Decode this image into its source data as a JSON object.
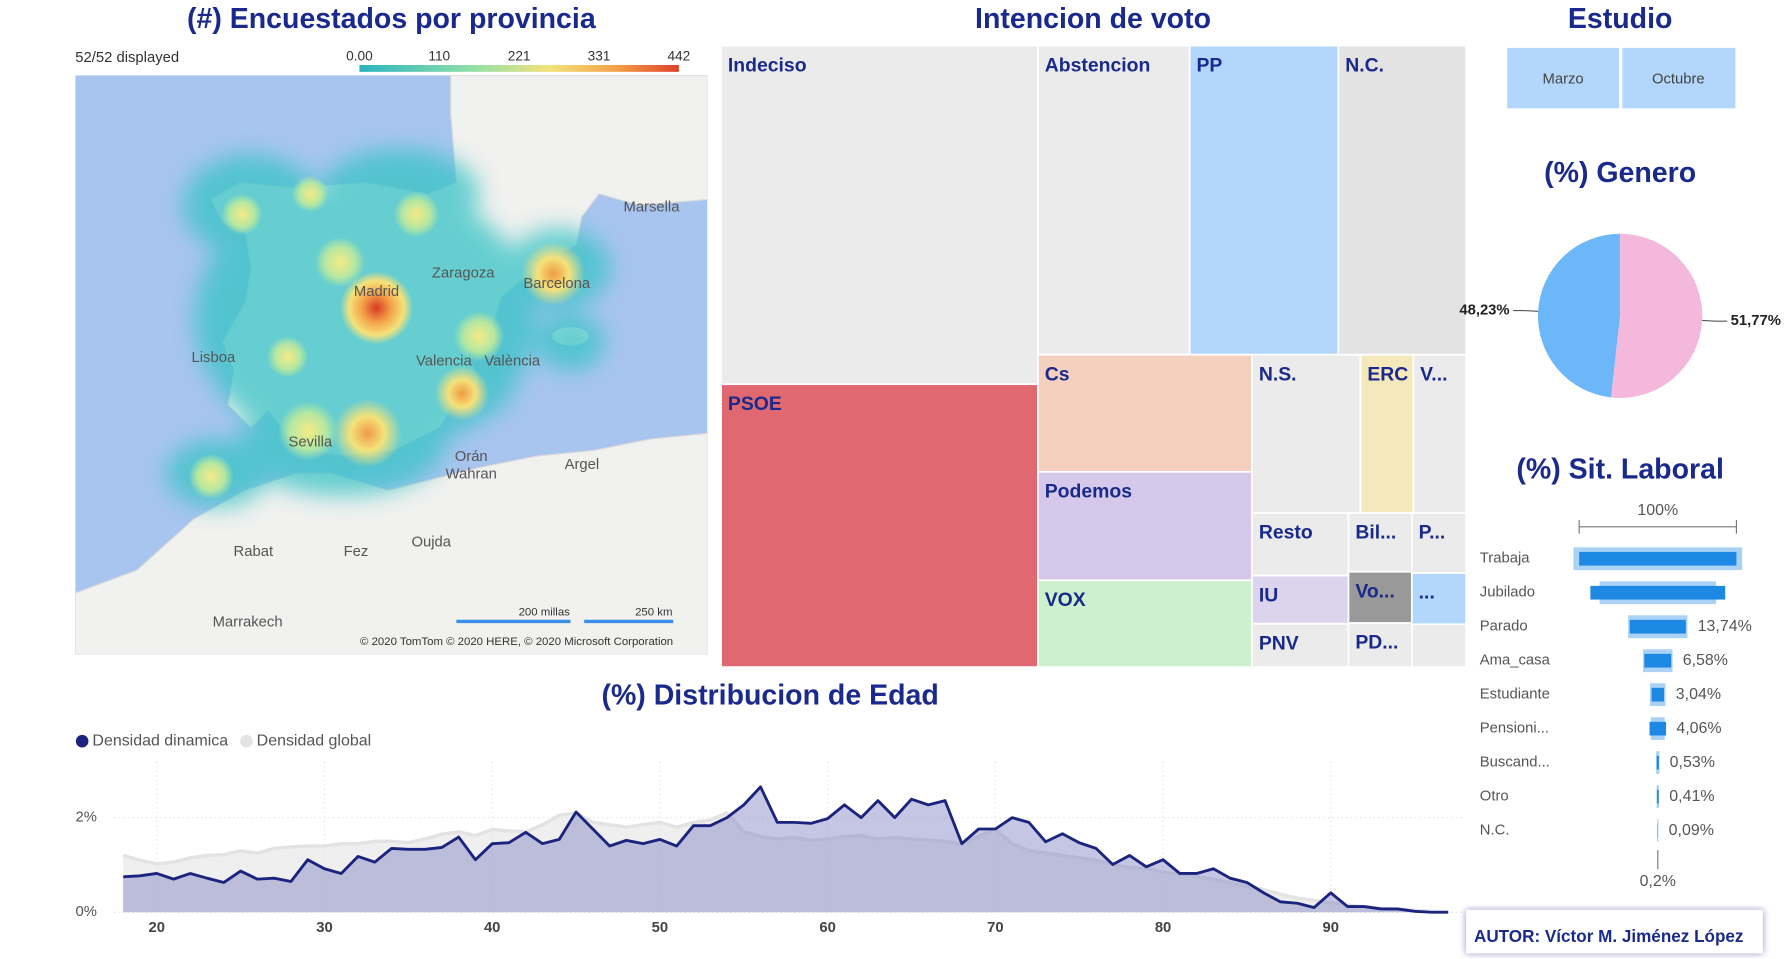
{
  "map": {
    "title": "(#) Encuestados por provincia",
    "status": "52/52 displayed",
    "legend_ticks": [
      "0.00",
      "110",
      "221",
      "331",
      "442"
    ],
    "places": [
      "Marsella",
      "Zaragoza",
      "Barcelona",
      "Madrid",
      "Lisboa",
      "Valencia",
      "València",
      "Sevilla",
      "Orán",
      "Wahran",
      "Argel",
      "Rabat",
      "Fez",
      "Oujda",
      "Marrakech"
    ],
    "scale": [
      "200 millas",
      "250 km"
    ],
    "attribution": "© 2020 TomTom © 2020 HERE, © 2020 Microsoft Corporation"
  },
  "slicer": {
    "title": "Estudio",
    "options": [
      "Marzo",
      "Octubre"
    ]
  },
  "chart_data": [
    {
      "type": "treemap",
      "title": "Intencion de voto",
      "categories": [
        "Indeciso",
        "PSOE",
        "Abstencion",
        "PP",
        "N.C.",
        "Cs",
        "Podemos",
        "VOX",
        "N.S.",
        "ERC",
        "V...",
        "Resto",
        "IU",
        "PNV",
        "Bil...",
        "Vo...",
        "PD...",
        "P...",
        "...",
        null
      ],
      "values": [
        23.1,
        19.3,
        10.1,
        9.9,
        8.5,
        5.4,
        5.0,
        4.0,
        3.7,
        1.8,
        1.8,
        1.3,
        1.0,
        0.9,
        0.8,
        0.7,
        0.6,
        0.7,
        0.6,
        0.5
      ],
      "colors": [
        "#ebebeb",
        "#e06870",
        "#ebebeb",
        "#b3d7fc",
        "#e3e3e3",
        "#f6d0bf",
        "#d6c8eb",
        "#cdf0cd",
        "#ebebeb",
        "#f5e9bb",
        "#ebebeb",
        "#ebebeb",
        "#dcd3ee",
        "#ebebeb",
        "#ebebeb",
        "#999999",
        "#ebebeb",
        "#ebebeb",
        "#b3d7fc",
        "#ebebeb"
      ]
    },
    {
      "type": "pie",
      "title": "(%) Genero",
      "values": [
        48.23,
        51.77
      ],
      "value_labels": [
        "48,23%",
        "51,77%"
      ],
      "colors": [
        "#6cb7f8",
        "#f4b8dc"
      ]
    },
    {
      "type": "funnel",
      "title": "(%) Sit. Laboral",
      "categories": [
        "Trabaja",
        "Jubilado",
        "Parado",
        "Ama_casa",
        "Estudiante",
        "Pensioni...",
        "Buscand...",
        "Otro",
        "N.C."
      ],
      "series": [
        {
          "color": "#a9d2f5",
          "values": [
            41.3,
            28.5,
            14.5,
            7.2,
            3.8,
            3.4,
            0.8,
            0.6,
            0.3
          ]
        },
        {
          "color": "#1e88e5",
          "values": [
            38.5,
            33.0,
            13.74,
            6.58,
            3.04,
            4.06,
            0.53,
            0.41,
            0.09
          ],
          "value_labels": [
            null,
            null,
            "13,74%",
            "6,58%",
            "3,04%",
            "4,06%",
            "0,53%",
            "0,41%",
            "0,09%"
          ]
        }
      ],
      "top_label": "100%",
      "bottom_label": "0,2%"
    },
    {
      "type": "area",
      "title": "(%) Distribucion de Edad",
      "x": [
        18,
        19,
        20,
        21,
        22,
        23,
        24,
        25,
        26,
        27,
        28,
        29,
        30,
        31,
        32,
        33,
        34,
        35,
        36,
        37,
        38,
        39,
        40,
        41,
        42,
        43,
        44,
        45,
        46,
        47,
        48,
        49,
        50,
        51,
        52,
        53,
        54,
        55,
        56,
        57,
        58,
        59,
        60,
        61,
        62,
        63,
        64,
        65,
        66,
        67,
        68,
        69,
        70,
        71,
        72,
        73,
        74,
        75,
        76,
        77,
        78,
        79,
        80,
        81,
        82,
        83,
        84,
        85,
        86,
        87,
        88,
        89,
        90,
        91,
        92,
        93,
        94,
        95,
        96,
        97
      ],
      "series": [
        {
          "name": "Densidad dinamica",
          "color": "#1a237e",
          "values": [
            0.75,
            0.77,
            0.82,
            0.7,
            0.82,
            0.72,
            0.63,
            0.87,
            0.7,
            0.72,
            0.65,
            1.11,
            0.92,
            0.82,
            1.18,
            1.06,
            1.35,
            1.33,
            1.33,
            1.37,
            1.59,
            1.11,
            1.45,
            1.47,
            1.69,
            1.45,
            1.54,
            2.12,
            1.76,
            1.4,
            1.52,
            1.45,
            1.54,
            1.4,
            1.83,
            1.83,
            2.0,
            2.27,
            2.65,
            1.9,
            1.9,
            1.88,
            1.98,
            2.27,
            2.0,
            2.36,
            2.0,
            2.39,
            2.27,
            2.36,
            1.45,
            1.76,
            1.76,
            2.0,
            1.9,
            1.49,
            1.66,
            1.47,
            1.35,
            1.01,
            1.2,
            0.96,
            1.11,
            0.82,
            0.82,
            0.92,
            0.72,
            0.63,
            0.41,
            0.22,
            0.19,
            0.1,
            0.41,
            0.12,
            0.12,
            0.07,
            0.07,
            0.02,
            0.0,
            0.0
          ]
        },
        {
          "name": "Densidad global",
          "color": "#e3e3e3",
          "values": [
            1.2,
            1.1,
            1.02,
            1.06,
            1.15,
            1.2,
            1.22,
            1.3,
            1.25,
            1.35,
            1.38,
            1.4,
            1.4,
            1.45,
            1.45,
            1.5,
            1.5,
            1.47,
            1.55,
            1.65,
            1.7,
            1.62,
            1.75,
            1.72,
            1.7,
            1.85,
            2.05,
            2.1,
            1.9,
            1.85,
            1.8,
            1.85,
            1.9,
            1.8,
            1.9,
            1.95,
            2.1,
            1.7,
            1.6,
            1.55,
            1.58,
            1.52,
            1.55,
            1.6,
            1.62,
            1.55,
            1.58,
            1.55,
            1.52,
            1.5,
            1.45,
            1.6,
            1.75,
            1.45,
            1.3,
            1.25,
            1.2,
            1.15,
            1.1,
            1.0,
            0.95,
            0.92,
            0.85,
            0.8,
            0.75,
            0.7,
            0.62,
            0.55,
            0.48,
            0.38,
            0.3,
            0.25,
            0.2,
            0.15,
            0.12,
            0.08,
            0.06,
            0.04,
            0.02,
            0.01
          ]
        }
      ],
      "xlim": [
        18,
        98
      ],
      "ylim": [
        0,
        2.7
      ],
      "xticks": [
        20,
        30,
        40,
        50,
        60,
        70,
        80,
        90
      ],
      "yticks": [
        {
          "value": 0,
          "label": "0%"
        },
        {
          "value": 2,
          "label": "2%"
        }
      ],
      "grid": true,
      "legend": "top-left"
    }
  ],
  "author": "AUTOR: Víctor M. Jiménez López"
}
